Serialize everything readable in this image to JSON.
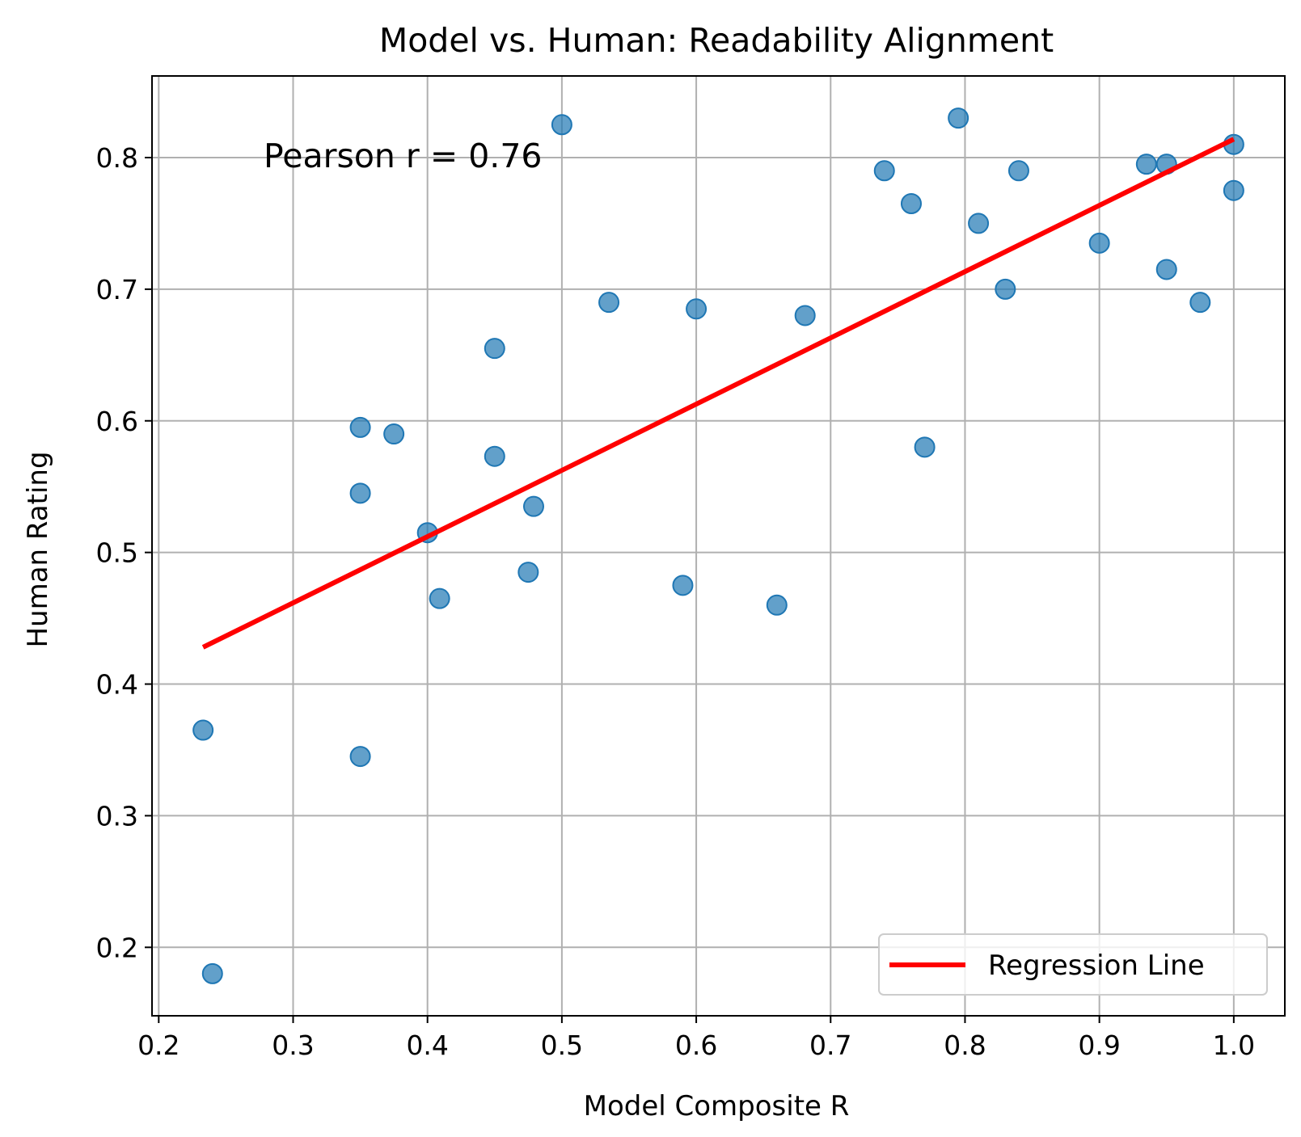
{
  "chart_data": {
    "type": "scatter",
    "title": "Model vs. Human: Readability Alignment",
    "xlabel": "Model Composite R",
    "ylabel": "Human Rating",
    "xlim": [
      0.195,
      1.038
    ],
    "ylim": [
      0.148,
      0.862
    ],
    "xticks": [
      0.2,
      0.3,
      0.4,
      0.5,
      0.6,
      0.7,
      0.8,
      0.9,
      1.0
    ],
    "xtick_labels": [
      "0.2",
      "0.3",
      "0.4",
      "0.5",
      "0.6",
      "0.7",
      "0.8",
      "0.9",
      "1.0"
    ],
    "yticks": [
      0.2,
      0.3,
      0.4,
      0.5,
      0.6,
      0.7,
      0.8
    ],
    "ytick_labels": [
      "0.2",
      "0.3",
      "0.4",
      "0.5",
      "0.6",
      "0.7",
      "0.8"
    ],
    "grid": true,
    "annotation": "Pearson r = 0.76",
    "legend": {
      "position": "lower-right",
      "entries": [
        "Regression Line"
      ]
    },
    "colors": {
      "points": "#1f77b4",
      "regression": "#ff0000",
      "grid": "#b0b0b0"
    },
    "points": [
      {
        "x": 0.233,
        "y": 0.365
      },
      {
        "x": 0.24,
        "y": 0.18
      },
      {
        "x": 0.35,
        "y": 0.595
      },
      {
        "x": 0.35,
        "y": 0.545
      },
      {
        "x": 0.35,
        "y": 0.345
      },
      {
        "x": 0.375,
        "y": 0.59
      },
      {
        "x": 0.4,
        "y": 0.515
      },
      {
        "x": 0.409,
        "y": 0.465
      },
      {
        "x": 0.45,
        "y": 0.655
      },
      {
        "x": 0.45,
        "y": 0.573
      },
      {
        "x": 0.475,
        "y": 0.485
      },
      {
        "x": 0.479,
        "y": 0.535
      },
      {
        "x": 0.5,
        "y": 0.825
      },
      {
        "x": 0.535,
        "y": 0.69
      },
      {
        "x": 0.59,
        "y": 0.475
      },
      {
        "x": 0.6,
        "y": 0.685
      },
      {
        "x": 0.66,
        "y": 0.46
      },
      {
        "x": 0.681,
        "y": 0.68
      },
      {
        "x": 0.74,
        "y": 0.79
      },
      {
        "x": 0.76,
        "y": 0.765
      },
      {
        "x": 0.77,
        "y": 0.58
      },
      {
        "x": 0.795,
        "y": 0.83
      },
      {
        "x": 0.81,
        "y": 0.75
      },
      {
        "x": 0.83,
        "y": 0.7
      },
      {
        "x": 0.84,
        "y": 0.79
      },
      {
        "x": 0.9,
        "y": 0.735
      },
      {
        "x": 0.935,
        "y": 0.795
      },
      {
        "x": 0.95,
        "y": 0.795
      },
      {
        "x": 0.95,
        "y": 0.715
      },
      {
        "x": 0.975,
        "y": 0.69
      },
      {
        "x": 1.0,
        "y": 0.81
      },
      {
        "x": 1.0,
        "y": 0.775
      }
    ],
    "regression_line": {
      "x": [
        0.233,
        1.0
      ],
      "y": [
        0.428,
        0.814
      ]
    }
  }
}
